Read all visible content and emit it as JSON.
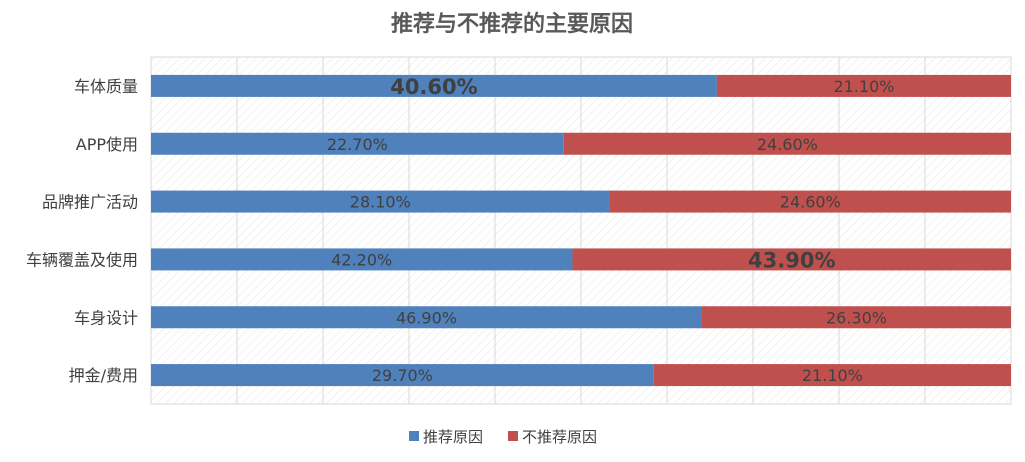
{
  "chart_data": {
    "type": "bar",
    "orientation": "horizontal",
    "stacked": "percent",
    "title": "推荐与不推荐的主要原因",
    "categories": [
      "车体质量",
      "APP使用",
      "品牌推广活动",
      "车辆覆盖及使用",
      "车身设计",
      "押金/费用"
    ],
    "series": [
      {
        "name": "推荐原因",
        "color": "#4f81bd",
        "values": [
          40.6,
          22.7,
          28.1,
          42.2,
          46.9,
          29.7
        ],
        "labels": [
          "40.60%",
          "22.70%",
          "28.10%",
          "42.20%",
          "46.90%",
          "29.70%"
        ],
        "emphasized": [
          true,
          false,
          false,
          false,
          false,
          false
        ]
      },
      {
        "name": "不推荐原因",
        "color": "#c0504d",
        "values": [
          21.1,
          24.6,
          24.6,
          43.9,
          26.3,
          21.1
        ],
        "labels": [
          "21.10%",
          "24.60%",
          "24.60%",
          "43.90%",
          "26.30%",
          "21.10%"
        ],
        "emphasized": [
          false,
          false,
          false,
          true,
          false,
          false
        ]
      }
    ],
    "legend": "bottom",
    "grid": true
  }
}
